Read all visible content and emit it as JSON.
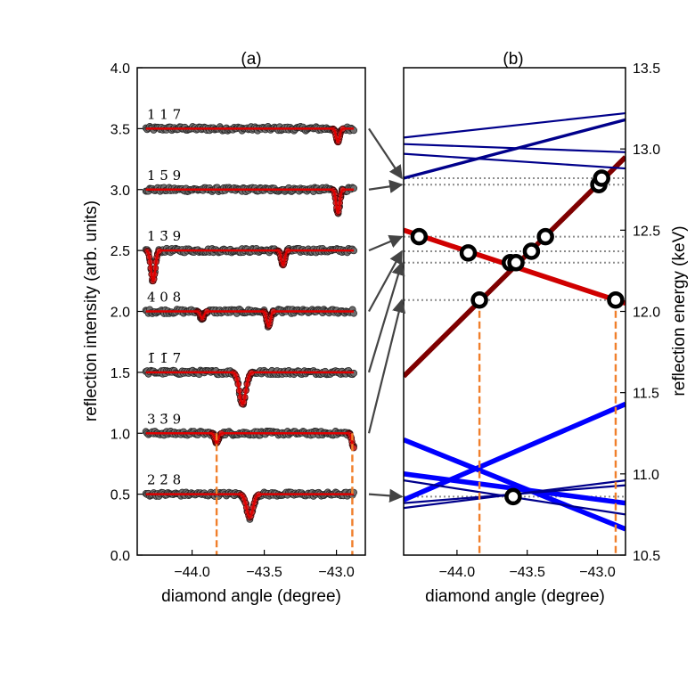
{
  "chart_data": [
    {
      "type": "scatter",
      "panel_label": "(a)",
      "xlabel": "diamond angle (degree)",
      "ylabel": "reflection intensity (arb. units)",
      "xlim": [
        -44.38,
        -42.8
      ],
      "ylim": [
        0.0,
        4.0
      ],
      "xticks": [
        -44.0,
        -43.5,
        -43.0
      ],
      "xtick_labels": [
        "−44.0",
        "−43.5",
        "−43.0"
      ],
      "yticks": [
        0.0,
        0.5,
        1.0,
        1.5,
        2.0,
        2.5,
        3.0,
        3.5,
        4.0
      ],
      "ytick_labels": [
        "0.0",
        "0.5",
        "1.0",
        "1.5",
        "2.0",
        "2.5",
        "3.0",
        "3.5",
        "4.0"
      ],
      "x_range": [
        -44.32,
        -42.88
      ],
      "series": [
        {
          "label": "1 1 7",
          "baseline": 3.5,
          "dips": [
            {
              "x": -42.99,
              "depth": 0.11,
              "width": 0.012
            }
          ]
        },
        {
          "label": "1 5̄ 9",
          "baseline": 3.0,
          "dips": [
            {
              "x": -42.99,
              "depth": 0.19,
              "width": 0.012
            }
          ]
        },
        {
          "label": "1 3̄ 9",
          "baseline": 2.5,
          "dips": [
            {
              "x": -44.27,
              "depth": 0.25,
              "width": 0.015
            },
            {
              "x": -43.37,
              "depth": 0.12,
              "width": 0.012
            }
          ]
        },
        {
          "label": "4 0 8",
          "baseline": 2.0,
          "dips": [
            {
              "x": -43.93,
              "depth": 0.06,
              "width": 0.012
            },
            {
              "x": -43.47,
              "depth": 0.12,
              "width": 0.012
            }
          ]
        },
        {
          "label": "1̄ 1̄ 7",
          "baseline": 1.5,
          "dips": [
            {
              "x": -43.65,
              "depth": 0.26,
              "width": 0.022
            }
          ]
        },
        {
          "label": "3 3̄ 9",
          "baseline": 1.0,
          "dips": [
            {
              "x": -43.83,
              "depth": 0.08,
              "width": 0.012
            },
            {
              "x": -42.88,
              "depth": 0.12,
              "width": 0.012
            }
          ]
        },
        {
          "label": "2 2̄ 8",
          "baseline": 0.5,
          "dips": [
            {
              "x": -43.6,
              "depth": 0.19,
              "width": 0.022
            }
          ]
        }
      ],
      "vertical_markers": [
        -43.83,
        -42.89
      ]
    },
    {
      "type": "line",
      "panel_label": "(b)",
      "xlabel": "diamond angle (degree)",
      "ylabel": "reflection energy (keV)",
      "xlim": [
        -44.38,
        -42.8
      ],
      "ylim": [
        10.5,
        13.5
      ],
      "xticks": [
        -44.0,
        -43.5,
        -43.0
      ],
      "xtick_labels": [
        "−44.0",
        "−43.5",
        "−43.0"
      ],
      "yticks": [
        10.5,
        11.0,
        11.5,
        12.0,
        12.5,
        13.0,
        13.5
      ],
      "ytick_labels": [
        "10.5",
        "11.0",
        "11.5",
        "12.0",
        "12.5",
        "13.0",
        "13.5"
      ],
      "lines": [
        {
          "x": [
            -44.38,
            -42.8
          ],
          "y": [
            11.6,
            12.95
          ],
          "color": "#7f0000",
          "width": "thick"
        },
        {
          "x": [
            -44.38,
            -42.8
          ],
          "y": [
            12.5,
            12.05
          ],
          "color": "#d00000",
          "width": "thick"
        },
        {
          "x": [
            -44.38,
            -42.8
          ],
          "y": [
            13.07,
            13.22
          ],
          "color": "#00008b",
          "width": "thin"
        },
        {
          "x": [
            -44.38,
            -42.8
          ],
          "y": [
            13.03,
            12.98
          ],
          "color": "#00008b",
          "width": "thin"
        },
        {
          "x": [
            -44.38,
            -42.8
          ],
          "y": [
            12.97,
            12.88
          ],
          "color": "#00008b",
          "width": "thin"
        },
        {
          "x": [
            -44.38,
            -42.8
          ],
          "y": [
            12.82,
            13.18
          ],
          "color": "#00008b",
          "width": "medium"
        },
        {
          "x": [
            -44.38,
            -42.8
          ],
          "y": [
            11.21,
            10.66
          ],
          "color": "#0000ff",
          "width": "thick"
        },
        {
          "x": [
            -44.38,
            -42.8
          ],
          "y": [
            10.84,
            11.43
          ],
          "color": "#0000ff",
          "width": "thick"
        },
        {
          "x": [
            -44.38,
            -42.8
          ],
          "y": [
            11.0,
            10.82
          ],
          "color": "#0000ff",
          "width": "thick"
        },
        {
          "x": [
            -44.38,
            -42.8
          ],
          "y": [
            10.96,
            10.75
          ],
          "color": "#00008b",
          "width": "thin"
        },
        {
          "x": [
            -44.38,
            -42.8
          ],
          "y": [
            10.79,
            10.96
          ],
          "color": "#00008b",
          "width": "thin"
        },
        {
          "x": [
            -44.38,
            -42.8
          ],
          "y": [
            10.82,
            10.93
          ],
          "color": "#00008b",
          "width": "thin"
        }
      ],
      "circles": [
        {
          "x": -44.27,
          "y": 12.46
        },
        {
          "x": -43.92,
          "y": 12.36
        },
        {
          "x": -43.84,
          "y": 12.07
        },
        {
          "x": -43.62,
          "y": 12.3
        },
        {
          "x": -43.58,
          "y": 12.3
        },
        {
          "x": -43.47,
          "y": 12.37
        },
        {
          "x": -43.37,
          "y": 12.46
        },
        {
          "x": -42.99,
          "y": 12.78
        },
        {
          "x": -42.97,
          "y": 12.82
        },
        {
          "x": -42.87,
          "y": 12.07
        },
        {
          "x": -43.6,
          "y": 10.86
        }
      ],
      "dotted_levels": [
        12.82,
        12.78,
        12.46,
        12.37,
        12.3,
        12.07,
        10.86
      ],
      "vertical_markers": [
        {
          "x": -43.84,
          "y_top": 12.07
        },
        {
          "x": -42.87,
          "y_top": 12.07
        }
      ],
      "connector_map": [
        {
          "from_series": "1 1 7",
          "to_energy": 12.82
        },
        {
          "from_series": "1 5̄ 9",
          "to_energy": 12.78
        },
        {
          "from_series": "1 3̄ 9",
          "to_energy": 12.46
        },
        {
          "from_series": "4 0 8",
          "to_energy": 12.37
        },
        {
          "from_series": "1̄ 1̄ 7",
          "to_energy": 12.3
        },
        {
          "from_series": "3 3̄ 9",
          "to_energy": 12.07
        },
        {
          "from_series": "2 2̄ 8",
          "to_energy": 10.86
        }
      ]
    }
  ],
  "colors": {
    "fit_red": "#e00000",
    "point_gray": "#6e6e6e",
    "marker_orange": "#f07f2b",
    "arrow_gray": "#444444",
    "dotted_gray": "#8c8c8c"
  }
}
